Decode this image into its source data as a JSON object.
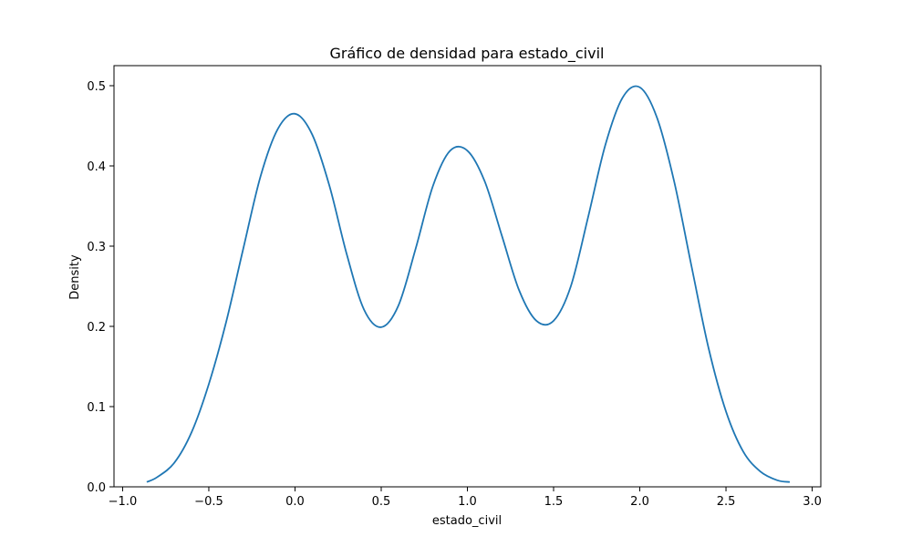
{
  "chart_data": {
    "type": "line",
    "title": "Gráfico de densidad para estado_civil",
    "xlabel": "estado_civil",
    "ylabel": "Density",
    "xlim": [
      -1.05,
      3.05
    ],
    "ylim": [
      0,
      0.525
    ],
    "xticks": [
      -1.0,
      -0.5,
      0.0,
      0.5,
      1.0,
      1.5,
      2.0,
      2.5,
      3.0
    ],
    "xtick_labels": [
      "−1.0",
      "−0.5",
      "0.0",
      "0.5",
      "1.0",
      "1.5",
      "2.0",
      "2.5",
      "3.0"
    ],
    "yticks": [
      0.0,
      0.1,
      0.2,
      0.3,
      0.4,
      0.5
    ],
    "ytick_labels": [
      "0.0",
      "0.1",
      "0.2",
      "0.3",
      "0.4",
      "0.5"
    ],
    "grid": false,
    "line_color": "#1f77b4",
    "series": [
      {
        "x": [
          -0.86,
          -0.8,
          -0.7,
          -0.6,
          -0.5,
          -0.4,
          -0.3,
          -0.2,
          -0.1,
          0.0,
          0.1,
          0.2,
          0.3,
          0.4,
          0.5,
          0.6,
          0.7,
          0.8,
          0.9,
          1.0,
          1.1,
          1.2,
          1.3,
          1.4,
          1.5,
          1.6,
          1.7,
          1.8,
          1.9,
          2.0,
          2.1,
          2.2,
          2.3,
          2.4,
          2.5,
          2.6,
          2.7,
          2.8,
          2.87
        ],
        "y": [
          0.006,
          0.012,
          0.03,
          0.068,
          0.128,
          0.205,
          0.297,
          0.387,
          0.446,
          0.465,
          0.439,
          0.375,
          0.29,
          0.221,
          0.199,
          0.226,
          0.297,
          0.375,
          0.419,
          0.419,
          0.381,
          0.313,
          0.245,
          0.207,
          0.207,
          0.25,
          0.336,
          0.426,
          0.485,
          0.498,
          0.46,
          0.38,
          0.275,
          0.172,
          0.094,
          0.044,
          0.019,
          0.008,
          0.006
        ]
      }
    ]
  }
}
